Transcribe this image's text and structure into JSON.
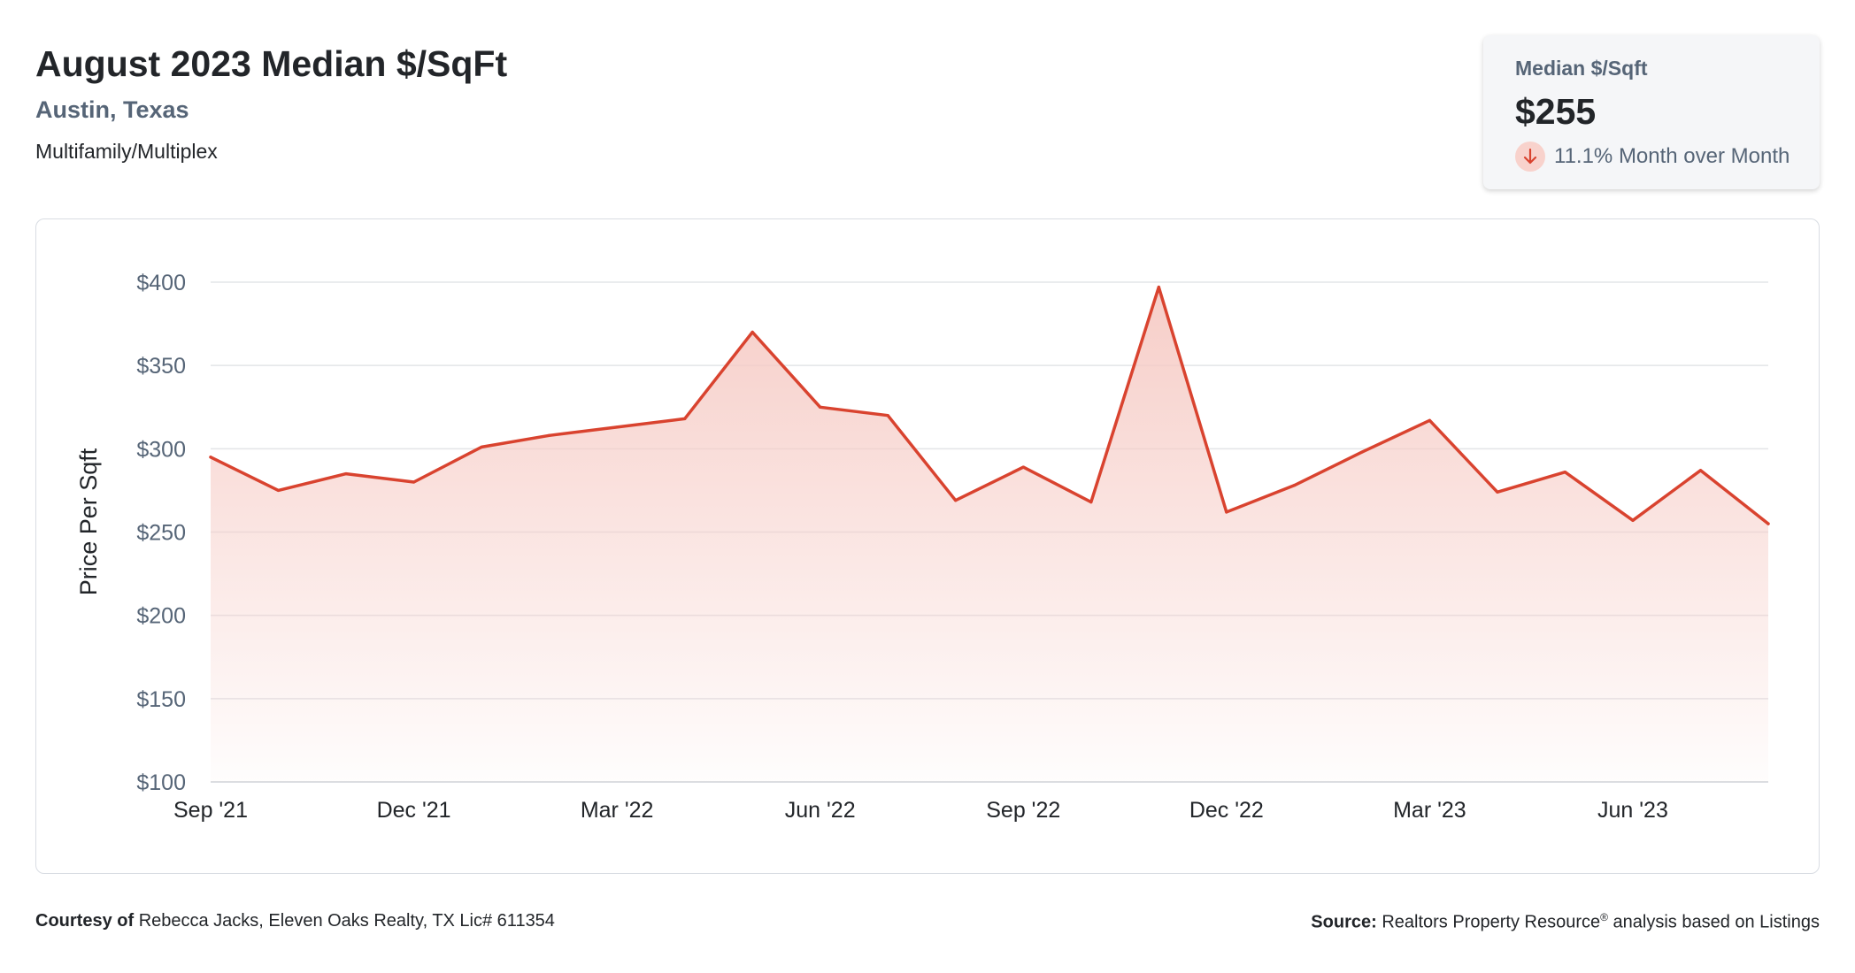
{
  "header": {
    "title": "August 2023 Median $/SqFt",
    "location": "Austin, Texas",
    "property_type": "Multifamily/Multiplex"
  },
  "stat_card": {
    "label": "Median $/Sqft",
    "value": "$255",
    "change": "11.1% Month over Month",
    "direction_icon": "arrow-down-icon"
  },
  "footer": {
    "courtesy_label": "Courtesy of",
    "courtesy_text": "Rebecca Jacks, Eleven Oaks Realty, TX Lic# 611354",
    "source_label": "Source:",
    "source_name": "Realtors Property Resource",
    "source_mark": "®",
    "source_text": "analysis based on Listings"
  },
  "colors": {
    "line": "#d9432f",
    "fill_top": "#f6cbc5",
    "grid": "#e3e5e8",
    "text_muted": "#566577"
  },
  "chart_data": {
    "type": "area",
    "title": "August 2023 Median $/SqFt",
    "ylabel": "Price Per Sqft",
    "xlabel": "",
    "ylim": [
      100,
      400
    ],
    "yticks": [
      100,
      150,
      200,
      250,
      300,
      350,
      400
    ],
    "ytick_labels": [
      "$100",
      "$150",
      "$200",
      "$250",
      "$300",
      "$350",
      "$400"
    ],
    "x_tick_labels": [
      "Sep '21",
      "Dec '21",
      "Mar '22",
      "Jun '22",
      "Sep '22",
      "Dec '22",
      "Mar '23",
      "Jun '23"
    ],
    "x_tick_indices": [
      0,
      3,
      6,
      9,
      12,
      15,
      18,
      21
    ],
    "grid": true,
    "months": [
      "Sep 2021",
      "Oct 2021",
      "Nov 2021",
      "Dec 2021",
      "Jan 2022",
      "Feb 2022",
      "Mar 2022",
      "Apr 2022",
      "May 2022",
      "Jun 2022",
      "Jul 2022",
      "Aug 2022",
      "Sep 2022",
      "Oct 2022",
      "Nov 2022",
      "Dec 2022",
      "Jan 2023",
      "Feb 2023",
      "Mar 2023",
      "Apr 2023",
      "May 2023",
      "Jun 2023",
      "Jul 2023",
      "Aug 2023"
    ],
    "values": [
      295,
      275,
      285,
      280,
      301,
      308,
      313,
      318,
      370,
      325,
      320,
      269,
      289,
      268,
      397,
      262,
      278,
      298,
      317,
      274,
      286,
      257,
      287,
      255
    ]
  }
}
